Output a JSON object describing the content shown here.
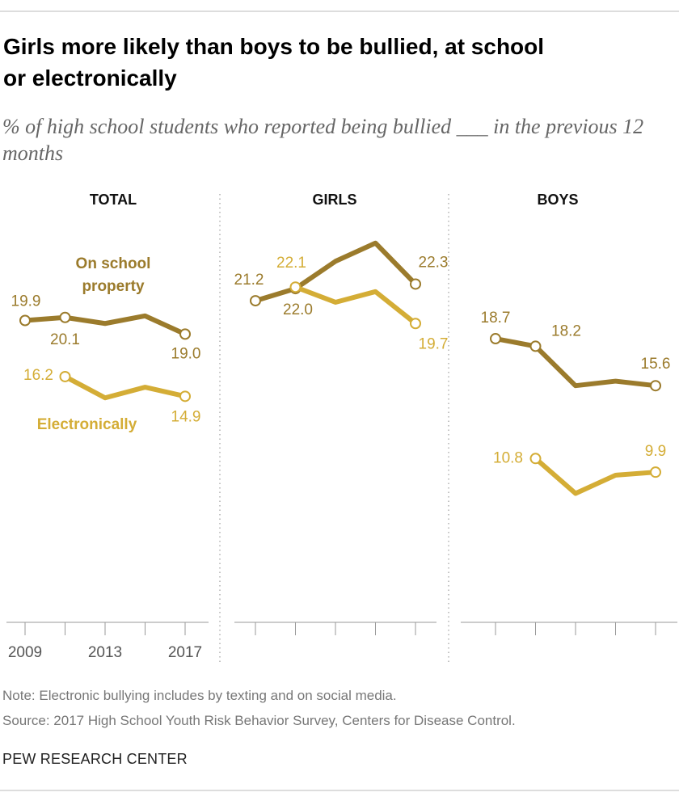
{
  "title": "Girls more likely than boys to be bullied, at school or electronically",
  "subtitle": "% of high school students who reported being bullied ___ in the previous 12 months",
  "note": "Note: Electronic bullying includes by texting and on social media.",
  "source": "Source: 2017 High School Youth Risk Behavior Survey, Centers for Disease Control.",
  "credit": "PEW RESEARCH CENTER",
  "chart_data": [
    {
      "type": "line",
      "title": "TOTAL",
      "categories": [
        "2009",
        null,
        "2013",
        null,
        "2017"
      ],
      "ylim": [
        0,
        26
      ],
      "series": [
        {
          "name": "On school property",
          "color": "#9b7b2c",
          "values": [
            19.9,
            20.1,
            19.7,
            20.2,
            19.0
          ],
          "value_labels": [
            "19.9",
            "20.1",
            null,
            null,
            "19.0"
          ]
        },
        {
          "name": "Electronically",
          "color": "#d4ad36",
          "values": [
            null,
            16.2,
            14.8,
            15.5,
            14.9
          ],
          "value_labels": [
            null,
            "16.2",
            null,
            null,
            "14.9"
          ]
        }
      ]
    },
    {
      "type": "line",
      "title": "GIRLS",
      "categories": [
        null,
        null,
        null,
        null,
        null
      ],
      "ylim": [
        0,
        26
      ],
      "series": [
        {
          "color": "#9b7b2c",
          "values": [
            21.2,
            22.0,
            23.8,
            25.0,
            22.3
          ],
          "value_labels": [
            "21.2",
            "22.0",
            null,
            null,
            "22.3"
          ]
        },
        {
          "color": "#d4ad36",
          "values": [
            null,
            22.1,
            21.1,
            21.8,
            19.7
          ],
          "value_labels": [
            null,
            "22.1",
            null,
            null,
            "19.7"
          ]
        }
      ]
    },
    {
      "type": "line",
      "title": "BOYS",
      "categories": [
        null,
        null,
        null,
        null,
        null
      ],
      "ylim": [
        0,
        26
      ],
      "series": [
        {
          "color": "#9b7b2c",
          "values": [
            18.7,
            18.2,
            15.6,
            15.9,
            15.6
          ],
          "value_labels": [
            "18.7",
            "18.2",
            null,
            null,
            "15.6"
          ]
        },
        {
          "color": "#d4ad36",
          "values": [
            null,
            10.8,
            8.5,
            9.7,
            9.9
          ],
          "value_labels": [
            null,
            "10.8",
            null,
            null,
            "9.9"
          ]
        }
      ]
    }
  ]
}
